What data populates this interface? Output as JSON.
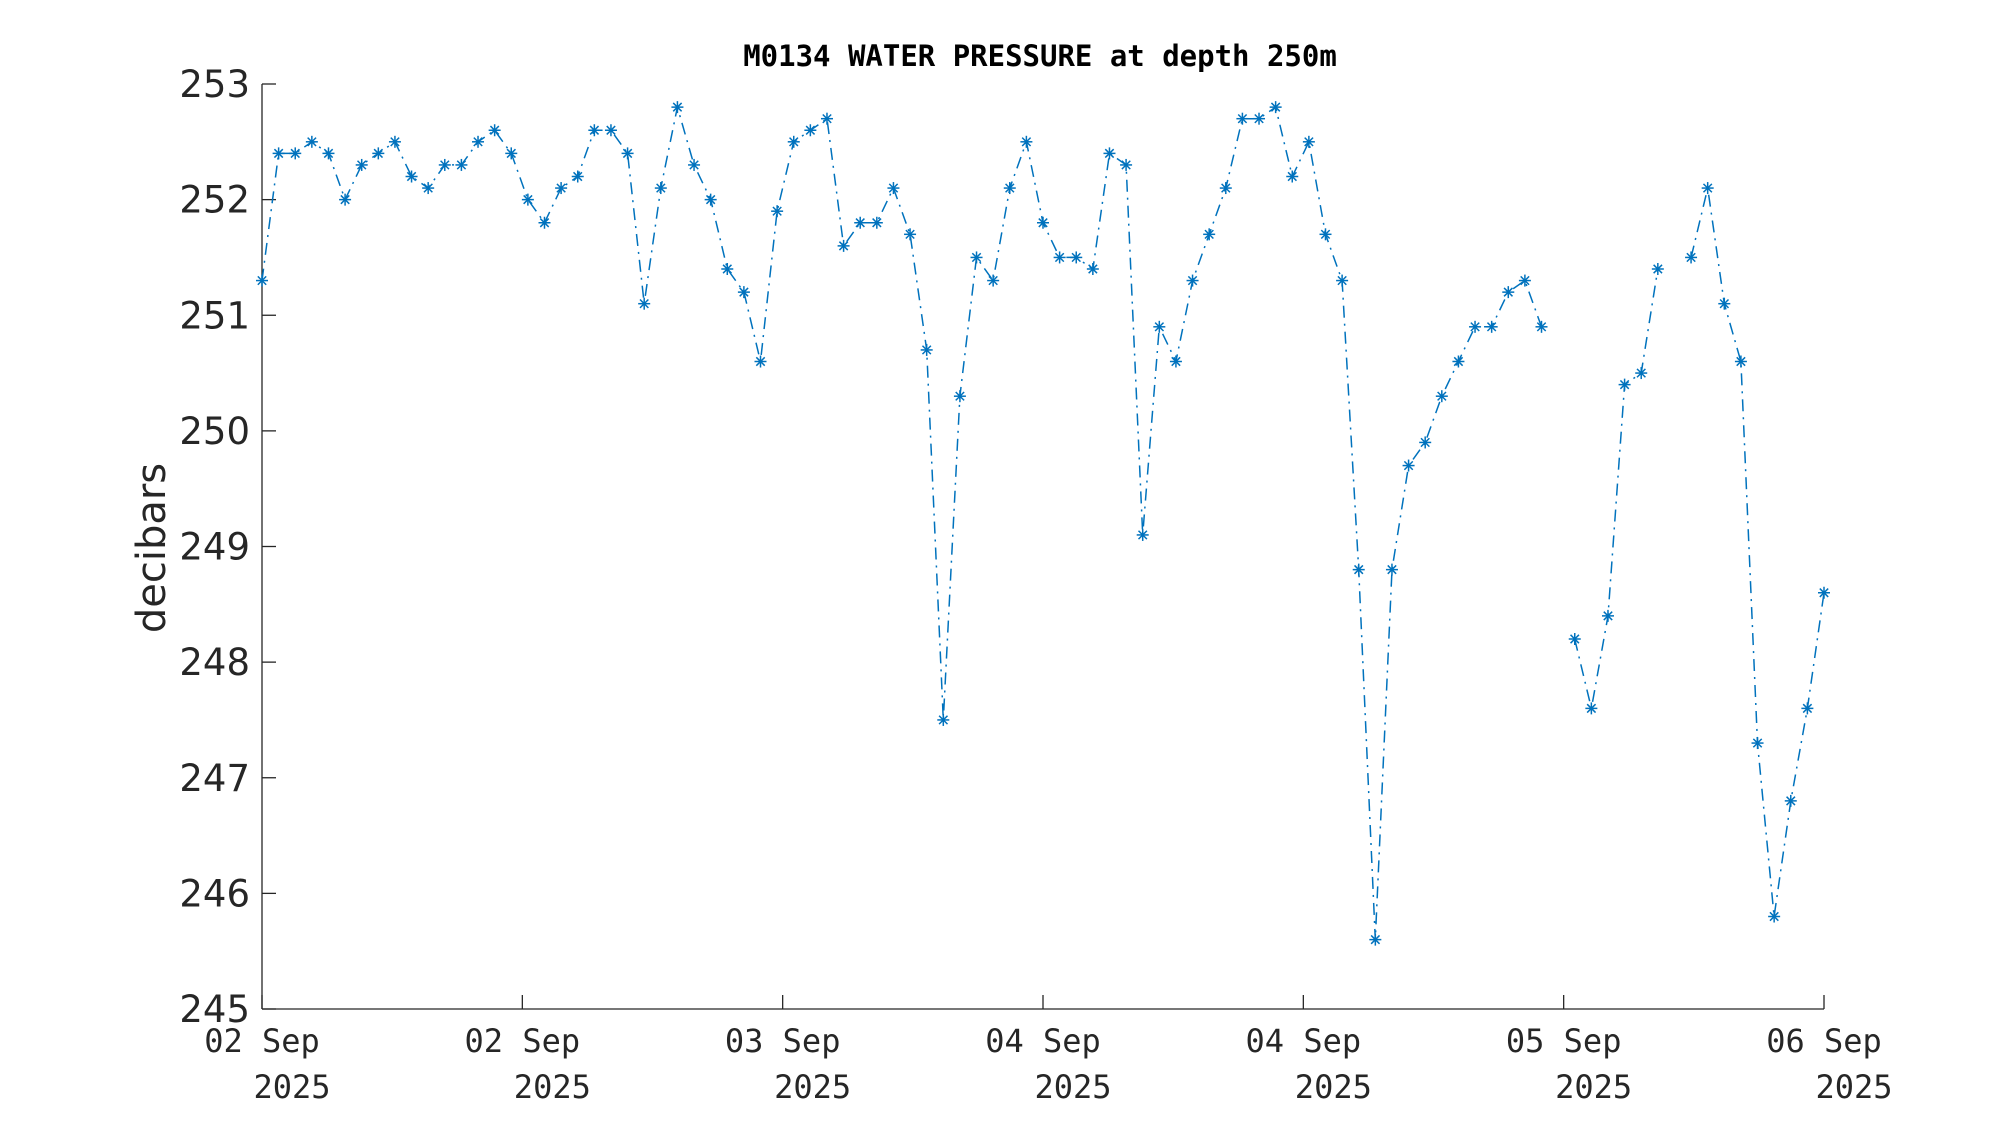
{
  "chart_data": {
    "type": "line",
    "title": "M0134 WATER PRESSURE at depth 250m",
    "xlabel": "",
    "ylabel": "decibars",
    "ylim": [
      245,
      253
    ],
    "yticks": [
      "245",
      "246",
      "247",
      "248",
      "249",
      "250",
      "251",
      "252",
      "253"
    ],
    "xticks": [
      {
        "line1": "02 Sep",
        "line2": "2025"
      },
      {
        "line1": "02 Sep",
        "line2": "2025"
      },
      {
        "line1": "03 Sep",
        "line2": "2025"
      },
      {
        "line1": "04 Sep",
        "line2": "2025"
      },
      {
        "line1": "04 Sep",
        "line2": "2025"
      },
      {
        "line1": "05 Sep",
        "line2": "2025"
      },
      {
        "line1": "06 Sep",
        "line2": "2025"
      }
    ],
    "grid": false,
    "legend": "none",
    "color": "#0072BD",
    "marker": "asterisk",
    "series": [
      {
        "values": [
          251.3,
          252.4,
          252.4,
          252.5,
          252.4,
          252.0,
          252.3,
          252.4,
          252.5,
          252.2,
          252.1,
          252.3,
          252.3,
          252.5,
          252.6,
          252.4,
          252.0,
          251.8,
          252.1,
          252.2,
          252.6,
          252.6,
          252.4,
          251.1,
          252.1,
          252.8,
          252.3,
          252.0,
          251.4,
          251.2,
          250.6,
          251.9,
          252.5,
          252.6,
          252.7,
          251.6,
          251.8,
          251.8,
          252.1,
          251.7,
          250.7,
          247.5,
          250.3,
          251.5,
          251.3,
          252.1,
          252.5,
          251.8,
          251.5,
          251.5,
          251.4,
          252.4,
          252.3,
          249.1,
          250.9,
          250.6,
          251.3,
          251.7,
          252.1,
          252.7,
          252.7,
          252.8,
          252.2,
          252.5,
          251.7,
          251.3,
          248.8,
          245.6,
          248.8,
          249.7,
          249.9,
          250.3,
          250.6,
          250.9,
          250.9,
          251.2,
          251.3,
          250.9,
          null,
          248.2,
          247.6,
          248.4,
          250.4,
          250.5,
          251.4,
          null,
          251.5,
          252.1,
          251.1,
          250.6,
          247.3,
          245.8,
          246.8,
          247.6,
          248.6
        ]
      }
    ]
  }
}
